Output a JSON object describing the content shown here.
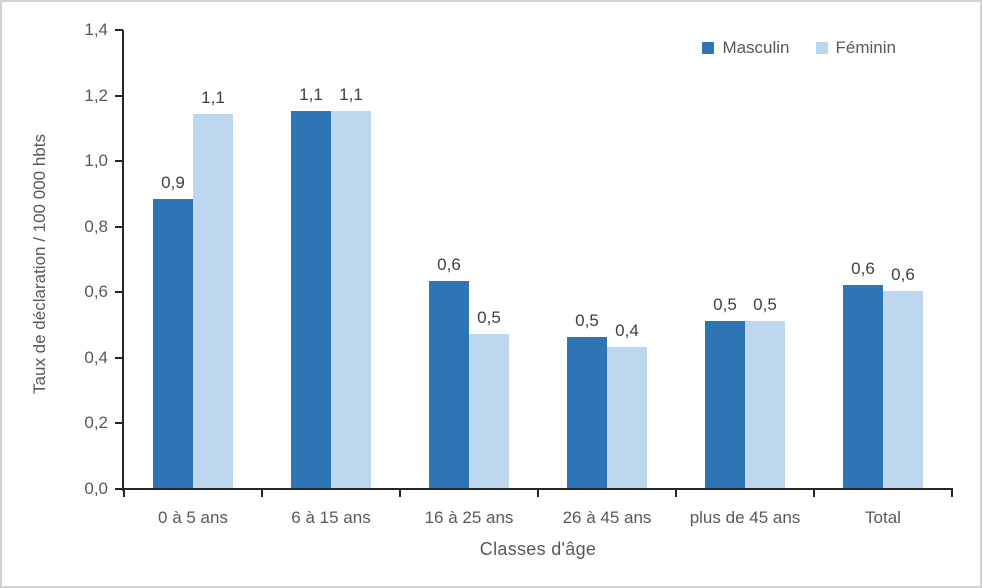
{
  "chart_data": {
    "type": "bar",
    "title": "",
    "categories": [
      "0 à 5 ans",
      "6 à 15 ans",
      "16 à 25 ans",
      "26 à 45 ans",
      "plus de 45 ans",
      "Total"
    ],
    "series": [
      {
        "name": "Masculin",
        "color": "#2E75B6",
        "values": [
          0.88,
          1.15,
          0.63,
          0.46,
          0.51,
          0.62
        ],
        "data_labels": [
          "0,9",
          "1,1",
          "0,6",
          "0,5",
          "0,5",
          "0,6"
        ]
      },
      {
        "name": "Féminin",
        "color": "#BDD7EE",
        "values": [
          1.14,
          1.15,
          0.47,
          0.43,
          0.51,
          0.6
        ],
        "data_labels": [
          "1,1",
          "1,1",
          "0,5",
          "0,4",
          "0,5",
          "0,6"
        ]
      }
    ],
    "xlabel": "Classes d'âge",
    "ylabel": "Taux de déclaration / 100 000 hbts",
    "ylim": [
      0,
      1.4
    ],
    "ytick_step": 0.2,
    "ytick_labels": [
      "0,0",
      "0,2",
      "0,4",
      "0,6",
      "0,8",
      "1,0",
      "1,2",
      "1,4"
    ],
    "legend": {
      "position": "top-right",
      "entries": [
        "Masculin",
        "Féminin"
      ]
    },
    "grid": false,
    "colors": {
      "axis": "#262626",
      "tick_labels": "#595959",
      "data_labels": "#404040",
      "masculin": "#2E75B6",
      "feminin": "#BDD7EE"
    }
  }
}
